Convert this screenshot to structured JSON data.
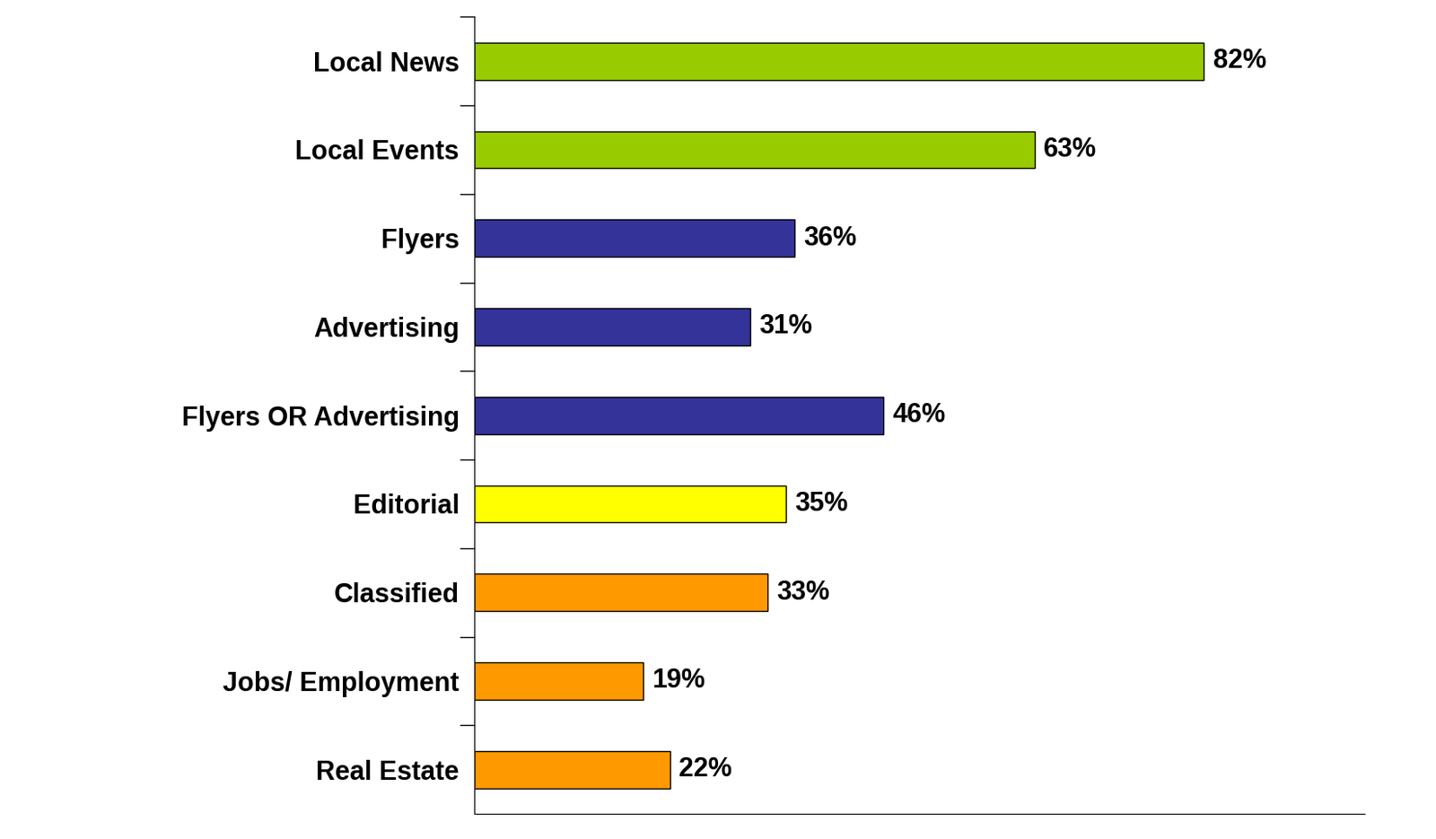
{
  "chart_data": {
    "type": "bar",
    "orientation": "horizontal",
    "categories": [
      "Local News",
      "Local Events",
      "Flyers",
      "Advertising",
      "Flyers OR Advertising",
      "Editorial",
      "Classified",
      "Jobs/ Employment",
      "Real Estate"
    ],
    "values": [
      82,
      63,
      36,
      31,
      46,
      35,
      33,
      19,
      22
    ],
    "value_labels": [
      "82%",
      "63%",
      "36%",
      "31%",
      "46%",
      "35%",
      "33%",
      "19%",
      "22%"
    ],
    "colors": [
      "#99cc00",
      "#99cc00",
      "#333399",
      "#333399",
      "#333399",
      "#ffff00",
      "#ff9900",
      "#ff9900",
      "#ff9900"
    ],
    "xlim": [
      0,
      100
    ],
    "data_labels": true,
    "tick_labels": "y",
    "grid": false
  }
}
